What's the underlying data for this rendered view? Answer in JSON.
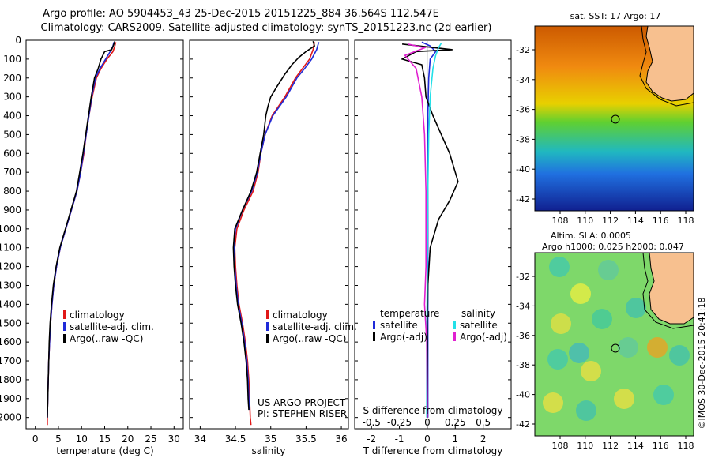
{
  "header": {
    "line1": "Argo profile: AO 5904453_43 25-Dec-2015 20151225_884 36.564S 112.547E",
    "line2": "Climatology: CARS2009. Satellite-adjusted climatology: synTS_20151223.nc (2d earlier)"
  },
  "colors": {
    "climatology": "#e01818",
    "satellite": "#1f2ad8",
    "argo": "#000000",
    "sal_satellite": "#22e0e8",
    "sal_argo": "#e020d0"
  },
  "chart_data": [
    {
      "type": "line",
      "name": "temperature",
      "xlabel": "temperature (deg C)",
      "ylabel": "",
      "xlim": [
        -2,
        32
      ],
      "ylim": [
        2060,
        0
      ],
      "xticks": [
        0,
        5,
        10,
        15,
        20,
        25,
        30
      ],
      "yticks": [
        0,
        100,
        200,
        300,
        400,
        500,
        600,
        700,
        800,
        900,
        1000,
        1100,
        1200,
        1300,
        1400,
        1500,
        1600,
        1700,
        1800,
        1900,
        2000
      ],
      "legend": [
        "climatology",
        "satellite-adj. clim.",
        "Argo(..raw -QC)"
      ],
      "series": [
        {
          "name": "climatology",
          "points": [
            [
              17.4,
              10
            ],
            [
              17.2,
              30
            ],
            [
              16.8,
              60
            ],
            [
              15.5,
              100
            ],
            [
              14.2,
              150
            ],
            [
              13.2,
              200
            ],
            [
              12.3,
              300
            ],
            [
              11.6,
              400
            ],
            [
              11.0,
              500
            ],
            [
              10.5,
              600
            ],
            [
              9.8,
              700
            ],
            [
              9.0,
              800
            ],
            [
              7.8,
              900
            ],
            [
              6.6,
              1000
            ],
            [
              5.4,
              1100
            ],
            [
              4.6,
              1200
            ],
            [
              4.0,
              1300
            ],
            [
              3.6,
              1400
            ],
            [
              3.3,
              1500
            ],
            [
              3.1,
              1600
            ],
            [
              2.9,
              1700
            ],
            [
              2.8,
              1800
            ],
            [
              2.7,
              1900
            ],
            [
              2.6,
              2000
            ],
            [
              2.6,
              2040
            ]
          ]
        },
        {
          "name": "satellite-adj. clim.",
          "points": [
            [
              17.0,
              10
            ],
            [
              16.8,
              30
            ],
            [
              16.2,
              60
            ],
            [
              15.2,
              100
            ],
            [
              14.0,
              150
            ],
            [
              13.0,
              200
            ],
            [
              12.2,
              300
            ],
            [
              11.6,
              400
            ],
            [
              11.0,
              500
            ],
            [
              10.4,
              600
            ],
            [
              9.8,
              700
            ],
            [
              9.0,
              800
            ],
            [
              7.8,
              900
            ],
            [
              6.6,
              1000
            ],
            [
              5.4,
              1100
            ],
            [
              4.6,
              1200
            ],
            [
              4.0,
              1300
            ],
            [
              3.6,
              1400
            ],
            [
              3.3,
              1500
            ],
            [
              3.1,
              1600
            ],
            [
              2.9,
              1700
            ],
            [
              2.8,
              1800
            ],
            [
              2.7,
              1900
            ],
            [
              2.6,
              2000
            ]
          ]
        },
        {
          "name": "Argo(..raw -QC)",
          "points": [
            [
              17.2,
              5
            ],
            [
              17.0,
              20
            ],
            [
              16.5,
              50
            ],
            [
              15.0,
              60
            ],
            [
              14.6,
              80
            ],
            [
              14.2,
              100
            ],
            [
              13.6,
              150
            ],
            [
              12.8,
              200
            ],
            [
              12.1,
              300
            ],
            [
              11.5,
              400
            ],
            [
              10.9,
              500
            ],
            [
              10.3,
              600
            ],
            [
              9.6,
              700
            ],
            [
              8.9,
              800
            ],
            [
              7.7,
              900
            ],
            [
              6.5,
              1000
            ],
            [
              5.3,
              1100
            ],
            [
              4.5,
              1200
            ],
            [
              3.9,
              1300
            ],
            [
              3.5,
              1400
            ],
            [
              3.2,
              1500
            ],
            [
              3.0,
              1600
            ],
            [
              2.9,
              1700
            ],
            [
              2.8,
              1800
            ],
            [
              2.7,
              1900
            ],
            [
              2.6,
              2000
            ]
          ]
        }
      ]
    },
    {
      "type": "line",
      "name": "salinity",
      "xlabel": "salinity",
      "ylabel": "",
      "xlim": [
        33.85,
        36.1
      ],
      "ylim": [
        2060,
        0
      ],
      "xticks": [
        34,
        34.5,
        35,
        35.5,
        36
      ],
      "xticklabels": [
        "34",
        "34.5",
        "35",
        "35.5",
        "36"
      ],
      "legend": [
        "climatology",
        "satellite-adj. clim.",
        "Argo(..raw -QC)"
      ],
      "series": [
        {
          "name": "climatology",
          "points": [
            [
              35.62,
              10
            ],
            [
              35.6,
              50
            ],
            [
              35.55,
              100
            ],
            [
              35.45,
              150
            ],
            [
              35.35,
              200
            ],
            [
              35.2,
              300
            ],
            [
              35.02,
              400
            ],
            [
              34.92,
              500
            ],
            [
              34.86,
              600
            ],
            [
              34.82,
              700
            ],
            [
              34.75,
              800
            ],
            [
              34.62,
              900
            ],
            [
              34.52,
              1000
            ],
            [
              34.49,
              1100
            ],
            [
              34.5,
              1200
            ],
            [
              34.52,
              1300
            ],
            [
              34.55,
              1400
            ],
            [
              34.6,
              1500
            ],
            [
              34.64,
              1600
            ],
            [
              34.67,
              1700
            ],
            [
              34.69,
              1800
            ],
            [
              34.7,
              1900
            ],
            [
              34.71,
              2000
            ],
            [
              34.72,
              2040
            ]
          ]
        },
        {
          "name": "satellite-adj. clim.",
          "points": [
            [
              35.68,
              10
            ],
            [
              35.65,
              50
            ],
            [
              35.58,
              100
            ],
            [
              35.48,
              150
            ],
            [
              35.37,
              200
            ],
            [
              35.22,
              300
            ],
            [
              35.03,
              400
            ],
            [
              34.92,
              500
            ],
            [
              34.86,
              600
            ],
            [
              34.81,
              700
            ],
            [
              34.73,
              800
            ],
            [
              34.6,
              900
            ],
            [
              34.5,
              1000
            ],
            [
              34.48,
              1100
            ],
            [
              34.49,
              1200
            ],
            [
              34.51,
              1300
            ],
            [
              34.54,
              1400
            ],
            [
              34.59,
              1500
            ],
            [
              34.63,
              1600
            ],
            [
              34.66,
              1700
            ],
            [
              34.68,
              1800
            ],
            [
              34.69,
              1900
            ],
            [
              34.7,
              1960
            ]
          ]
        },
        {
          "name": "Argo(..raw -QC)",
          "points": [
            [
              35.6,
              5
            ],
            [
              35.62,
              30
            ],
            [
              35.5,
              60
            ],
            [
              35.4,
              90
            ],
            [
              35.3,
              130
            ],
            [
              35.2,
              180
            ],
            [
              35.08,
              250
            ],
            [
              35.0,
              300
            ],
            [
              34.96,
              350
            ],
            [
              34.93,
              400
            ],
            [
              34.9,
              500
            ],
            [
              34.85,
              600
            ],
            [
              34.8,
              700
            ],
            [
              34.72,
              800
            ],
            [
              34.6,
              900
            ],
            [
              34.49,
              1000
            ],
            [
              34.47,
              1100
            ],
            [
              34.48,
              1200
            ],
            [
              34.5,
              1300
            ],
            [
              34.53,
              1400
            ],
            [
              34.58,
              1500
            ],
            [
              34.62,
              1600
            ],
            [
              34.65,
              1700
            ],
            [
              34.67,
              1800
            ],
            [
              34.68,
              1900
            ],
            [
              34.69,
              1960
            ]
          ]
        }
      ]
    },
    {
      "type": "line",
      "name": "difference",
      "xlabel": "T difference from climatology",
      "title_bottom": "S difference from climatology",
      "xlim": [
        -2.6,
        3.0
      ],
      "ylim": [
        2060,
        0
      ],
      "xticks": [
        -2,
        -1,
        0,
        1,
        2
      ],
      "s_tick_labels": [
        "-0.5",
        "-0.25",
        "0",
        "0.25",
        "0.5"
      ],
      "s_tick_positions": [
        -2,
        -1,
        0,
        1,
        2
      ],
      "legend_left_title": "temperature",
      "legend_right_title": "salinity",
      "legend_left": [
        "satellite",
        "Argo(-adj)"
      ],
      "legend_right": [
        "satellite",
        "Argo(-adj)"
      ],
      "series": [
        {
          "name": "T satellite",
          "points": [
            [
              -0.2,
              10
            ],
            [
              0.1,
              30
            ],
            [
              0.3,
              60
            ],
            [
              0.1,
              100
            ],
            [
              0.05,
              200
            ],
            [
              0.02,
              400
            ],
            [
              0.02,
              700
            ],
            [
              0.02,
              1000
            ],
            [
              0.02,
              1400
            ],
            [
              0.02,
              2000
            ]
          ]
        },
        {
          "name": "T Argo(-adj)",
          "points": [
            [
              -0.9,
              20
            ],
            [
              -0.3,
              30
            ],
            [
              0.3,
              40
            ],
            [
              0.9,
              50
            ],
            [
              -0.4,
              60
            ],
            [
              -0.9,
              100
            ],
            [
              -0.2,
              130
            ],
            [
              -0.1,
              200
            ],
            [
              -0.05,
              300
            ],
            [
              0.2,
              400
            ],
            [
              0.5,
              500
            ],
            [
              0.8,
              600
            ],
            [
              1.0,
              700
            ],
            [
              1.1,
              750
            ],
            [
              0.8,
              850
            ],
            [
              0.4,
              950
            ],
            [
              0.1,
              1100
            ],
            [
              0.02,
              1300
            ],
            [
              0.0,
              1500
            ],
            [
              0.0,
              2000
            ]
          ]
        },
        {
          "name": "S satellite",
          "points": [
            [
              0.5,
              15
            ],
            [
              0.4,
              40
            ],
            [
              0.3,
              80
            ],
            [
              0.2,
              150
            ],
            [
              0.1,
              300
            ],
            [
              0.05,
              500
            ],
            [
              0.02,
              800
            ],
            [
              0.0,
              1200
            ],
            [
              -0.02,
              1600
            ],
            [
              -0.02,
              2000
            ]
          ]
        },
        {
          "name": "S Argo(-adj)",
          "points": [
            [
              -0.7,
              20
            ],
            [
              -0.1,
              40
            ],
            [
              -0.8,
              80
            ],
            [
              -0.4,
              150
            ],
            [
              -0.2,
              300
            ],
            [
              -0.1,
              500
            ],
            [
              -0.05,
              800
            ],
            [
              -0.05,
              1200
            ],
            [
              -0.1,
              1400
            ],
            [
              -0.02,
              1600
            ],
            [
              0.0,
              2000
            ]
          ]
        }
      ]
    }
  ],
  "credits": {
    "project": "US ARGO PROJECT",
    "pi": "PI: STEPHEN RISER"
  },
  "maps": {
    "sst_title": "sat. SST: 17 Argo: 17",
    "sla_title1": "Altim. SLA: 0.0005",
    "sla_title2": "Argo h1000: 0.025 h2000: 0.047",
    "lat_ticks": [
      "-32",
      "-34",
      "-36",
      "-38",
      "-40",
      "-42"
    ],
    "lon_ticks": [
      "108",
      "110",
      "112",
      "114",
      "116",
      "118"
    ]
  },
  "watermark": "©IMOS 30-Dec-2015 20:41:18"
}
